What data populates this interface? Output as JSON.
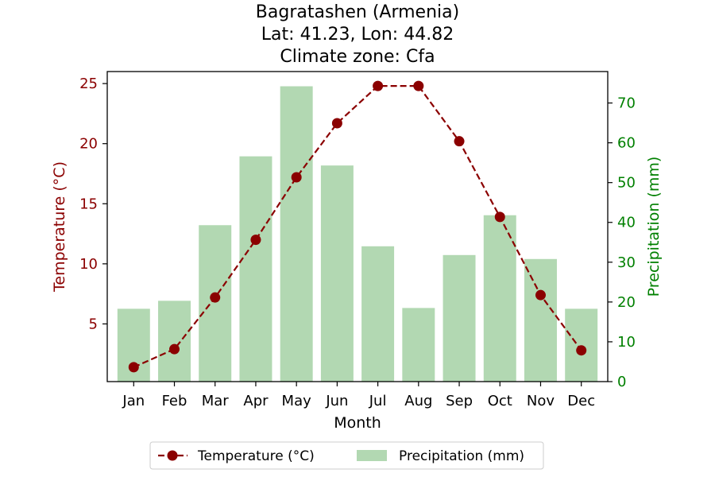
{
  "chart_data": {
    "type": "bar+line",
    "title_lines": [
      "Bagratashen (Armenia)",
      "Lat: 41.23, Lon: 44.82",
      "Climate zone: Cfa"
    ],
    "xlabel": "Month",
    "categories": [
      "Jan",
      "Feb",
      "Mar",
      "Apr",
      "May",
      "Jun",
      "Jul",
      "Aug",
      "Sep",
      "Oct",
      "Nov",
      "Dec"
    ],
    "series": [
      {
        "name": "Temperature (°C)",
        "kind": "line",
        "axis": "left",
        "color": "#8b0000",
        "values": [
          1.4,
          2.9,
          7.2,
          12.0,
          17.2,
          21.7,
          24.8,
          24.8,
          20.2,
          13.9,
          7.4,
          2.8
        ]
      },
      {
        "name": "Precipitation (mm)",
        "kind": "bar",
        "axis": "right",
        "color": "#b2d8b2",
        "values": [
          18.3,
          20.3,
          39.3,
          56.6,
          74.2,
          54.3,
          34.0,
          18.5,
          31.8,
          41.8,
          30.8,
          18.3
        ]
      }
    ],
    "y_left": {
      "label": "Temperature (°C)",
      "color": "#8b0000",
      "lim": [
        0.2,
        26.0
      ],
      "ticks": [
        5,
        10,
        15,
        20,
        25
      ]
    },
    "y_right": {
      "label": "Precipitation (mm)",
      "color": "#008000",
      "lim": [
        0,
        77.9
      ],
      "ticks": [
        0,
        10,
        20,
        30,
        40,
        50,
        60,
        70
      ]
    },
    "legend": {
      "placement": "bottom-center",
      "entries": [
        "Temperature (°C)",
        "Precipitation (mm)"
      ]
    },
    "grid": false
  }
}
